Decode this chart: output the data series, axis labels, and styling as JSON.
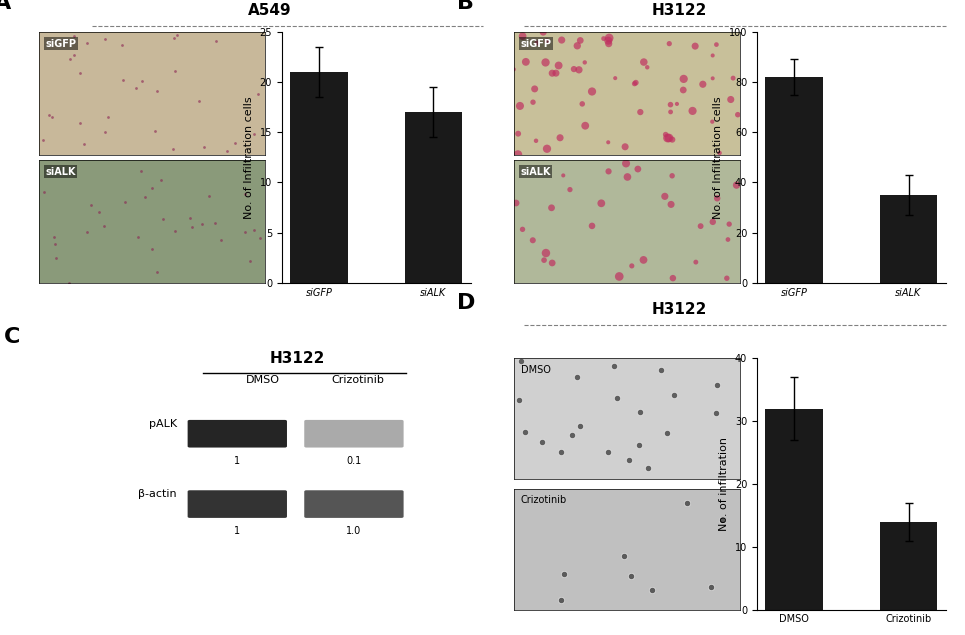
{
  "panel_A": {
    "title": "A549",
    "bar_categories": [
      "siGFP",
      "siALK"
    ],
    "bar_values": [
      21,
      17
    ],
    "bar_errors": [
      2.5,
      2.5
    ],
    "ylim": [
      0,
      25
    ],
    "yticks": [
      0,
      5,
      10,
      15,
      20,
      25
    ],
    "ylabel": "No. of Infiltration cells",
    "img_labels": [
      "siGFP",
      "siALK"
    ],
    "img_colors": [
      "#c8b89a",
      "#8a9a7a"
    ]
  },
  "panel_B": {
    "title": "H3122",
    "bar_categories": [
      "siGFP",
      "siALK"
    ],
    "bar_values": [
      82,
      35
    ],
    "bar_errors": [
      7,
      8
    ],
    "ylim": [
      0,
      100
    ],
    "yticks": [
      0,
      20,
      40,
      60,
      80,
      100
    ],
    "ylabel": "No. of Infiltration cells",
    "img_labels": [
      "siGFP",
      "siALK"
    ],
    "img_colors": [
      "#c8c09a",
      "#b0b89a"
    ]
  },
  "panel_C": {
    "title": "H3122",
    "subtitle_dmso": "DMSO",
    "subtitle_crizo": "Crizotinib",
    "row1_label": "pALK",
    "row2_label": "β-actin",
    "row1_values": [
      "1",
      "0.1"
    ],
    "row2_values": [
      "1",
      "1.0"
    ]
  },
  "panel_D": {
    "title": "H3122",
    "bar_categories": [
      "DMSO",
      "Crizotinib"
    ],
    "bar_values": [
      32,
      14
    ],
    "bar_errors": [
      5,
      3
    ],
    "ylim": [
      0,
      40
    ],
    "yticks": [
      0,
      10,
      20,
      30,
      40
    ],
    "ylabel": "No. of infiltration",
    "img_labels": [
      "DMSO",
      "Crizotinib"
    ],
    "img_colors": [
      "#d0d0d0",
      "#c0c0c0"
    ]
  },
  "bar_color": "#1a1a1a",
  "panel_label_fontsize": 16,
  "title_fontsize": 11,
  "axis_fontsize": 8,
  "tick_fontsize": 7
}
